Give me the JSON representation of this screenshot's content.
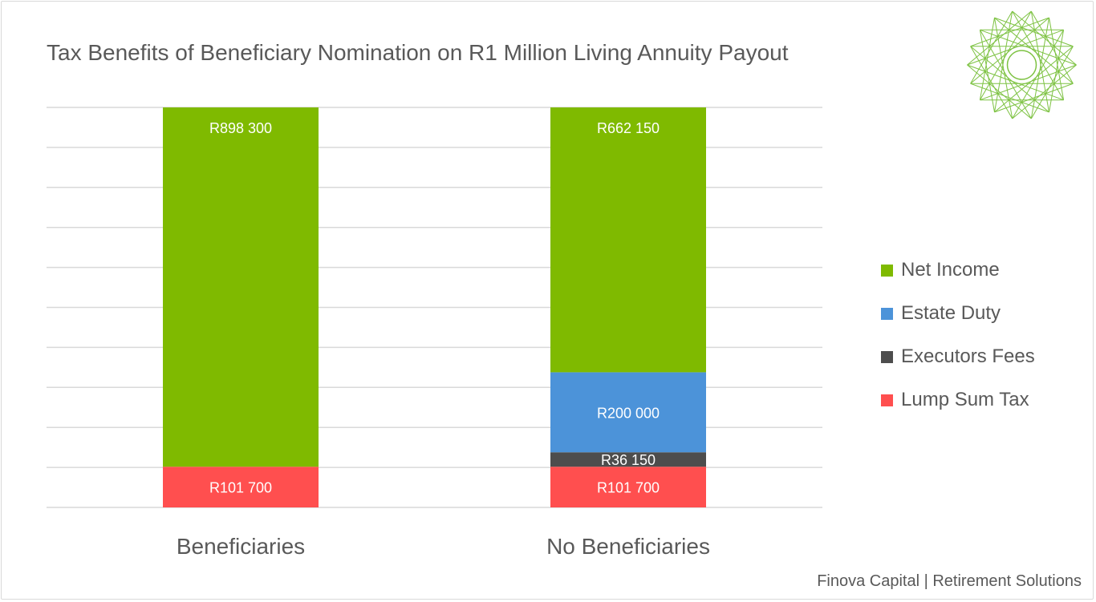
{
  "footer": "Finova Capital | Retirement Solutions",
  "logo": {
    "icon": "spirograph-logo-icon",
    "color": "#7dc242"
  },
  "chart_data": {
    "type": "bar",
    "stacked": true,
    "title": "Tax Benefits of Beneficiary Nomination on R1 Million Living Annuity Payout",
    "xlabel": "",
    "ylabel": "",
    "ylim": [
      0,
      1000000
    ],
    "grid": true,
    "legend_position": "right",
    "categories": [
      "Beneficiaries",
      "No Beneficiaries"
    ],
    "series": [
      {
        "name": "Lump Sum Tax",
        "color": "#ff4f4f",
        "values": [
          101700,
          101700
        ],
        "labels": [
          "R101 700",
          "R101 700"
        ]
      },
      {
        "name": "Executors Fees",
        "color": "#4d4d4d",
        "values": [
          0,
          36150
        ],
        "labels": [
          "",
          "R36 150"
        ]
      },
      {
        "name": "Estate Duty",
        "color": "#4c93d9",
        "values": [
          0,
          200000
        ],
        "labels": [
          "",
          "R200 000"
        ]
      },
      {
        "name": "Net Income",
        "color": "#7fba00",
        "values": [
          898300,
          662150
        ],
        "labels": [
          "R898 300",
          "R662 150"
        ]
      }
    ],
    "legend_order": [
      "Net Income",
      "Estate Duty",
      "Executors Fees",
      "Lump Sum Tax"
    ]
  }
}
